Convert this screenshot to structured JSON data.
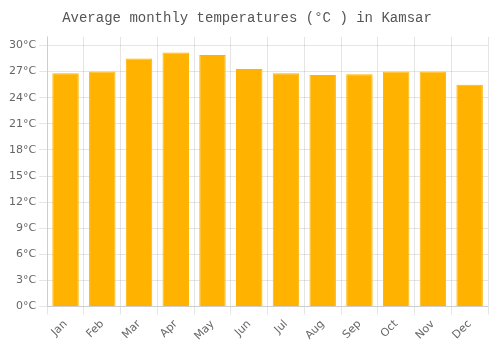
{
  "chart_data": {
    "type": "bar",
    "title": "Average monthly temperatures (°C ) in Kamsar",
    "categories": [
      "Jan",
      "Feb",
      "Mar",
      "Apr",
      "May",
      "Jun",
      "Jul",
      "Aug",
      "Sep",
      "Oct",
      "Nov",
      "Dec"
    ],
    "values": [
      26.8,
      27.0,
      28.5,
      29.2,
      28.9,
      27.3,
      26.8,
      26.6,
      26.7,
      27.0,
      27.0,
      25.5
    ],
    "color": "#FFB300",
    "ylim": [
      0,
      31
    ],
    "yticks": [
      {
        "value": 0,
        "label": "0°C"
      },
      {
        "value": 3,
        "label": "3°C"
      },
      {
        "value": 6,
        "label": "6°C"
      },
      {
        "value": 9,
        "label": "9°C"
      },
      {
        "value": 12,
        "label": "12°C"
      },
      {
        "value": 15,
        "label": "15°C"
      },
      {
        "value": 18,
        "label": "18°C"
      },
      {
        "value": 21,
        "label": "21°C"
      },
      {
        "value": 24,
        "label": "24°C"
      },
      {
        "value": 27,
        "label": "27°C"
      },
      {
        "value": 30,
        "label": "30°C"
      }
    ],
    "grid": true
  }
}
